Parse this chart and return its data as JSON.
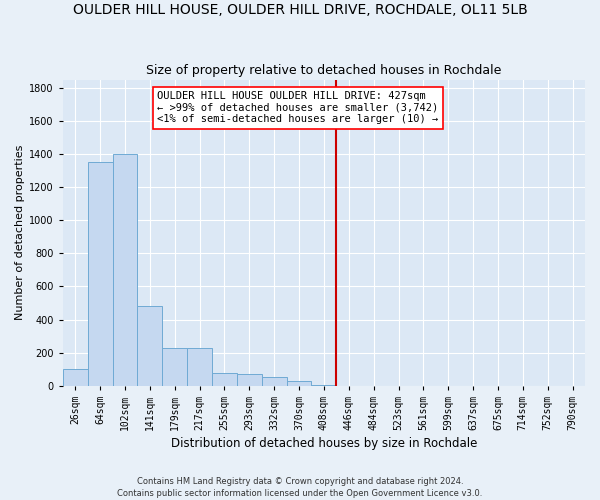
{
  "title": "OULDER HILL HOUSE, OULDER HILL DRIVE, ROCHDALE, OL11 5LB",
  "subtitle": "Size of property relative to detached houses in Rochdale",
  "xlabel": "Distribution of detached houses by size in Rochdale",
  "ylabel": "Number of detached properties",
  "bar_color": "#c5d8f0",
  "bar_edge_color": "#6faad4",
  "background_color": "#dce8f5",
  "fig_background_color": "#e8f0f8",
  "categories": [
    "26sqm",
    "64sqm",
    "102sqm",
    "141sqm",
    "179sqm",
    "217sqm",
    "255sqm",
    "293sqm",
    "332sqm",
    "370sqm",
    "408sqm",
    "446sqm",
    "484sqm",
    "523sqm",
    "561sqm",
    "599sqm",
    "637sqm",
    "675sqm",
    "714sqm",
    "752sqm",
    "790sqm"
  ],
  "values": [
    100,
    1350,
    1400,
    480,
    230,
    230,
    80,
    70,
    55,
    30,
    5,
    0,
    0,
    0,
    0,
    0,
    0,
    0,
    0,
    0,
    0
  ],
  "ylim": [
    0,
    1850
  ],
  "yticks": [
    0,
    200,
    400,
    600,
    800,
    1000,
    1200,
    1400,
    1600,
    1800
  ],
  "vline_x_index": 10,
  "vline_color": "#cc0000",
  "annotation_text": "OULDER HILL HOUSE OULDER HILL DRIVE: 427sqm\n← >99% of detached houses are smaller (3,742)\n<1% of semi-detached houses are larger (10) →",
  "footer_text": "Contains HM Land Registry data © Crown copyright and database right 2024.\nContains public sector information licensed under the Open Government Licence v3.0.",
  "grid_color": "#ffffff",
  "title_fontsize": 10,
  "subtitle_fontsize": 9,
  "tick_fontsize": 7,
  "ylabel_fontsize": 8,
  "xlabel_fontsize": 8.5,
  "annotation_fontsize": 7.5
}
